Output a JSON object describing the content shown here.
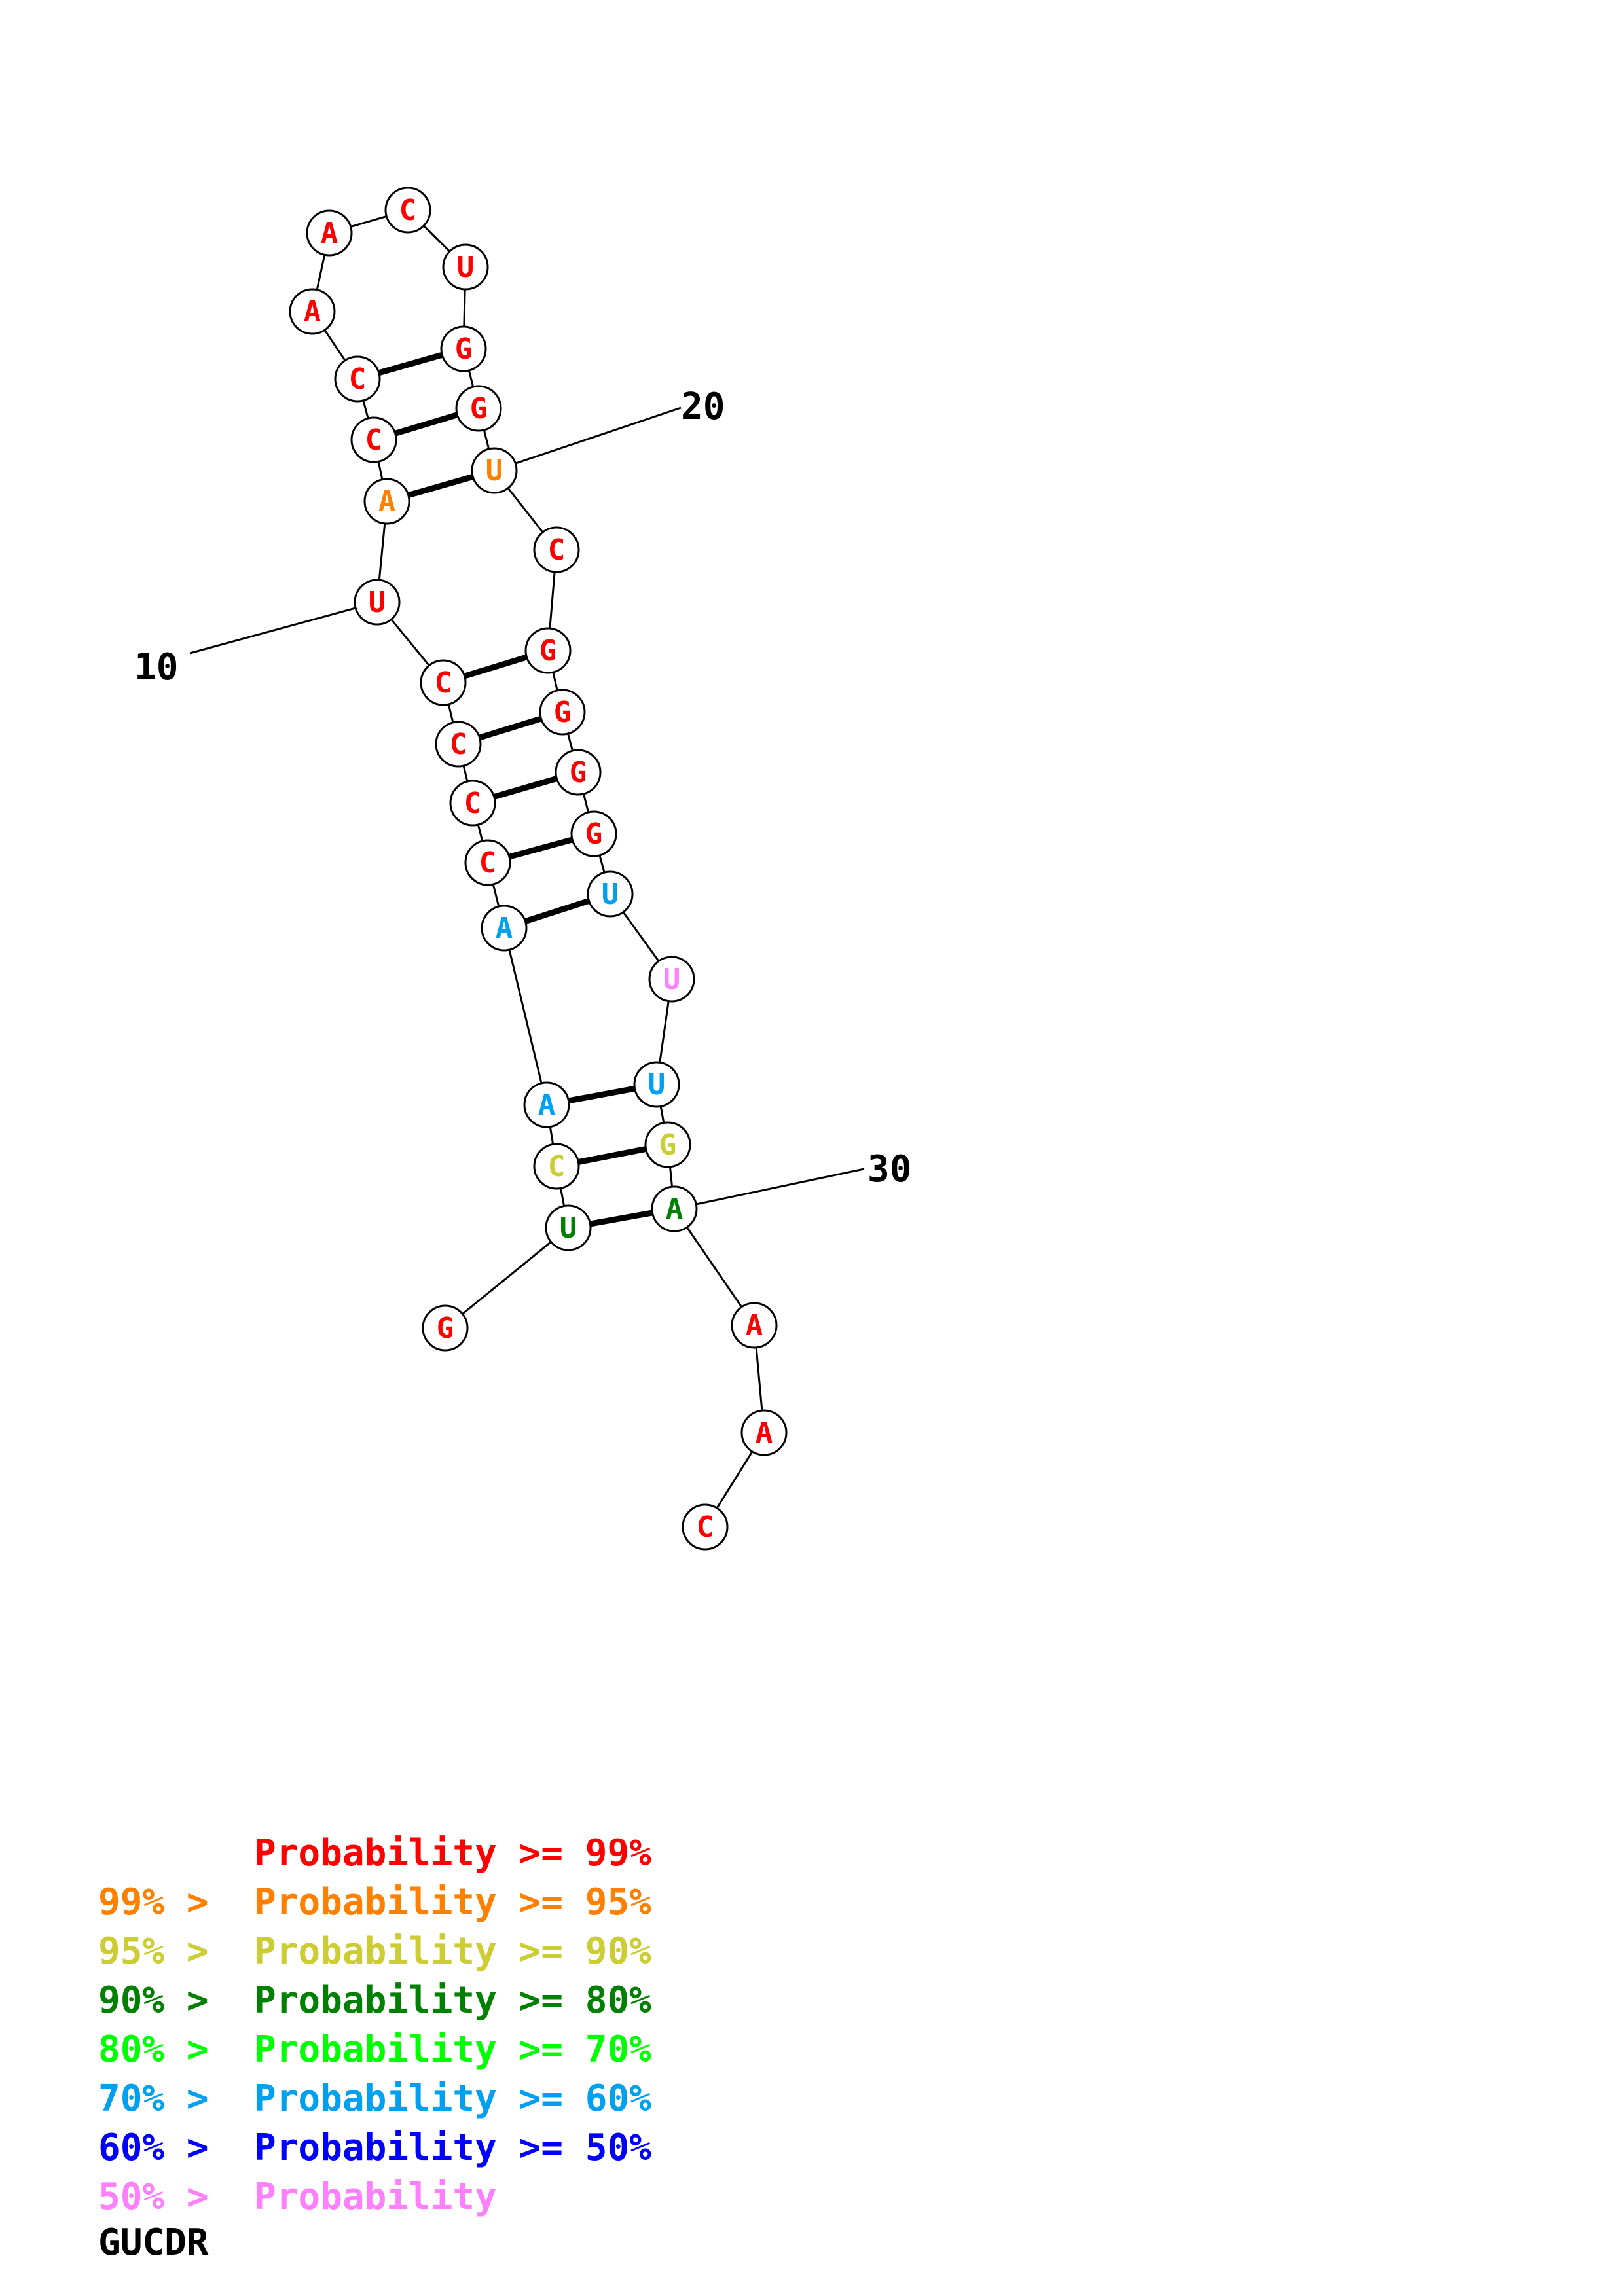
{
  "colors": {
    "p99": "#ff0000",
    "p95": "#ff8000",
    "p90": "#cccc33",
    "p80": "#008000",
    "p70": "#00ff00",
    "p60": "#00a0f0",
    "p50": "#0000ff",
    "plow": "#ff80ff"
  },
  "nucleotides": [
    {
      "index": 1,
      "letter": "G",
      "color": "#ff0000"
    },
    {
      "index": 2,
      "letter": "U",
      "color": "#008000"
    },
    {
      "index": 3,
      "letter": "C",
      "color": "#cccc33"
    },
    {
      "index": 4,
      "letter": "A",
      "color": "#00a0f0"
    },
    {
      "index": 5,
      "letter": "A",
      "color": "#00a0f0"
    },
    {
      "index": 6,
      "letter": "C",
      "color": "#ff0000"
    },
    {
      "index": 7,
      "letter": "C",
      "color": "#ff0000"
    },
    {
      "index": 8,
      "letter": "C",
      "color": "#ff0000"
    },
    {
      "index": 9,
      "letter": "C",
      "color": "#ff0000"
    },
    {
      "index": 10,
      "letter": "U",
      "color": "#ff0000"
    },
    {
      "index": 11,
      "letter": "A",
      "color": "#ff8000"
    },
    {
      "index": 12,
      "letter": "C",
      "color": "#ff0000"
    },
    {
      "index": 13,
      "letter": "C",
      "color": "#ff0000"
    },
    {
      "index": 14,
      "letter": "A",
      "color": "#ff0000"
    },
    {
      "index": 15,
      "letter": "A",
      "color": "#ff0000"
    },
    {
      "index": 16,
      "letter": "C",
      "color": "#ff0000"
    },
    {
      "index": 17,
      "letter": "U",
      "color": "#ff0000"
    },
    {
      "index": 18,
      "letter": "G",
      "color": "#ff0000"
    },
    {
      "index": 19,
      "letter": "G",
      "color": "#ff0000"
    },
    {
      "index": 20,
      "letter": "U",
      "color": "#ff8000"
    },
    {
      "index": 21,
      "letter": "C",
      "color": "#ff0000"
    },
    {
      "index": 22,
      "letter": "G",
      "color": "#ff0000"
    },
    {
      "index": 23,
      "letter": "G",
      "color": "#ff0000"
    },
    {
      "index": 24,
      "letter": "G",
      "color": "#ff0000"
    },
    {
      "index": 25,
      "letter": "G",
      "color": "#ff0000"
    },
    {
      "index": 26,
      "letter": "U",
      "color": "#00a0f0"
    },
    {
      "index": 27,
      "letter": "U",
      "color": "#ff80ff"
    },
    {
      "index": 28,
      "letter": "U",
      "color": "#00a0f0"
    },
    {
      "index": 29,
      "letter": "G",
      "color": "#cccc33"
    },
    {
      "index": 30,
      "letter": "A",
      "color": "#008000"
    },
    {
      "index": 31,
      "letter": "A",
      "color": "#ff0000"
    },
    {
      "index": 32,
      "letter": "A",
      "color": "#ff0000"
    },
    {
      "index": 33,
      "letter": "C",
      "color": "#ff0000"
    }
  ],
  "pairs": [
    [
      2,
      30
    ],
    [
      3,
      29
    ],
    [
      4,
      28
    ],
    [
      5,
      26
    ],
    [
      6,
      25
    ],
    [
      7,
      24
    ],
    [
      8,
      23
    ],
    [
      9,
      22
    ],
    [
      11,
      20
    ],
    [
      12,
      19
    ],
    [
      13,
      18
    ]
  ],
  "position_labels": [
    {
      "index": 10,
      "text": "10"
    },
    {
      "index": 20,
      "text": "20"
    },
    {
      "index": 30,
      "text": "30"
    }
  ],
  "legend": [
    {
      "prefix": "",
      "text": "Probability >= 99%",
      "color": "#ff0000"
    },
    {
      "prefix": "99% > ",
      "text": "Probability >= 95%",
      "color": "#ff8000"
    },
    {
      "prefix": "95% > ",
      "text": "Probability >= 90%",
      "color": "#cccc33"
    },
    {
      "prefix": "90% > ",
      "text": "Probability >= 80%",
      "color": "#008000"
    },
    {
      "prefix": "80% > ",
      "text": "Probability >= 70%",
      "color": "#00ff00"
    },
    {
      "prefix": "70% > ",
      "text": "Probability >= 60%",
      "color": "#00a0f0"
    },
    {
      "prefix": "60% > ",
      "text": "Probability >= 50%",
      "color": "#0000ff"
    },
    {
      "prefix": "50% > ",
      "text": "Probability",
      "color": "#ff80ff"
    }
  ],
  "structure_name": "GUCDR"
}
